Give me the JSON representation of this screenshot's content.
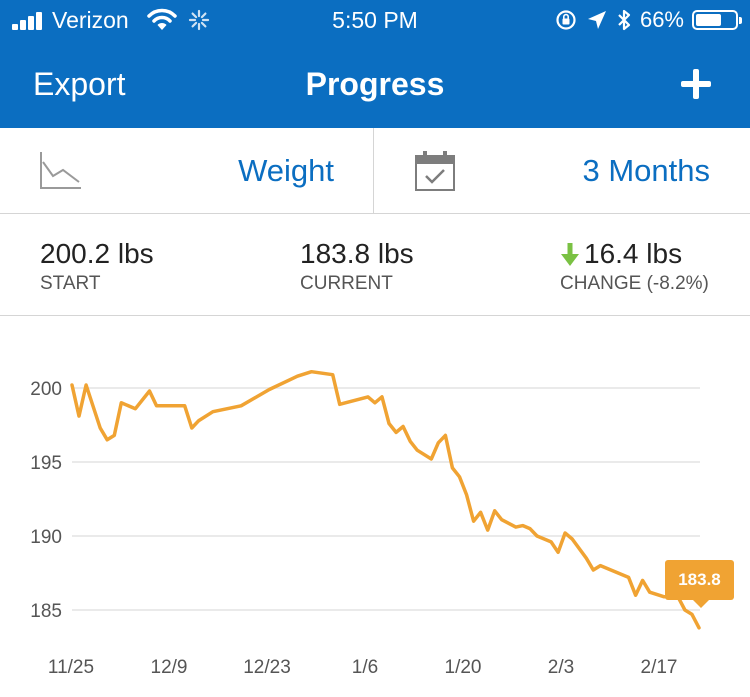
{
  "status": {
    "carrier": "Verizon",
    "time": "5:50 PM",
    "battery": "66%",
    "battery_level": 0.66
  },
  "nav": {
    "left": "Export",
    "title": "Progress"
  },
  "selectors": {
    "metric": "Weight",
    "range": "3 Months"
  },
  "summary": {
    "start_value": "200.2 lbs",
    "start_caption": "START",
    "current_value": "183.8 lbs",
    "current_caption": "CURRENT",
    "change_value": "16.4 lbs",
    "change_caption": "CHANGE (-8.2%)"
  },
  "colors": {
    "accent": "#0b6ec1",
    "line": "#f0a333",
    "down_arrow": "#7ac143"
  },
  "chart_data": {
    "type": "line",
    "title": "",
    "xlabel": "",
    "ylabel": "",
    "ylim": [
      183.3,
      201.9
    ],
    "y_ticks": [
      200,
      195,
      190,
      185
    ],
    "x_ticks": [
      "11/25",
      "12/9",
      "12/23",
      "1/6",
      "1/20",
      "2/3",
      "2/17"
    ],
    "xlim": [
      0,
      91
    ],
    "grid": true,
    "last_label": "183.8",
    "series": [
      {
        "values": [
          [
            0,
            200.2
          ],
          [
            1,
            198.1
          ],
          [
            2,
            200.2
          ],
          [
            4,
            197.3
          ],
          [
            5,
            196.5
          ],
          [
            6,
            196.8
          ],
          [
            7,
            199.0
          ],
          [
            9,
            198.6
          ],
          [
            11,
            199.8
          ],
          [
            12,
            198.8
          ],
          [
            16,
            198.8
          ],
          [
            17,
            197.3
          ],
          [
            18,
            197.8
          ],
          [
            20,
            198.4
          ],
          [
            24,
            198.8
          ],
          [
            28,
            199.9
          ],
          [
            32,
            200.8
          ],
          [
            34,
            201.1
          ],
          [
            37,
            200.9
          ],
          [
            38,
            198.9
          ],
          [
            42,
            199.4
          ],
          [
            43,
            199.0
          ],
          [
            44,
            199.4
          ],
          [
            45,
            197.6
          ],
          [
            46,
            197.0
          ],
          [
            47,
            197.4
          ],
          [
            48,
            196.4
          ],
          [
            49,
            195.8
          ],
          [
            51,
            195.2
          ],
          [
            52,
            196.3
          ],
          [
            53,
            196.8
          ],
          [
            54,
            194.6
          ],
          [
            55,
            194.0
          ],
          [
            56,
            192.8
          ],
          [
            57,
            191.0
          ],
          [
            58,
            191.6
          ],
          [
            59,
            190.4
          ],
          [
            60,
            191.7
          ],
          [
            61,
            191.1
          ],
          [
            63,
            190.6
          ],
          [
            64,
            190.7
          ],
          [
            65,
            190.5
          ],
          [
            66,
            190.0
          ],
          [
            68,
            189.6
          ],
          [
            69,
            188.9
          ],
          [
            70,
            190.2
          ],
          [
            71,
            189.8
          ],
          [
            73,
            188.5
          ],
          [
            74,
            187.7
          ],
          [
            75,
            188.0
          ],
          [
            79,
            187.2
          ],
          [
            80,
            186.0
          ],
          [
            81,
            187.0
          ],
          [
            82,
            186.2
          ],
          [
            84,
            185.9
          ],
          [
            86,
            185.9
          ],
          [
            87,
            185.0
          ],
          [
            88,
            184.7
          ],
          [
            89,
            183.8
          ]
        ]
      }
    ]
  }
}
